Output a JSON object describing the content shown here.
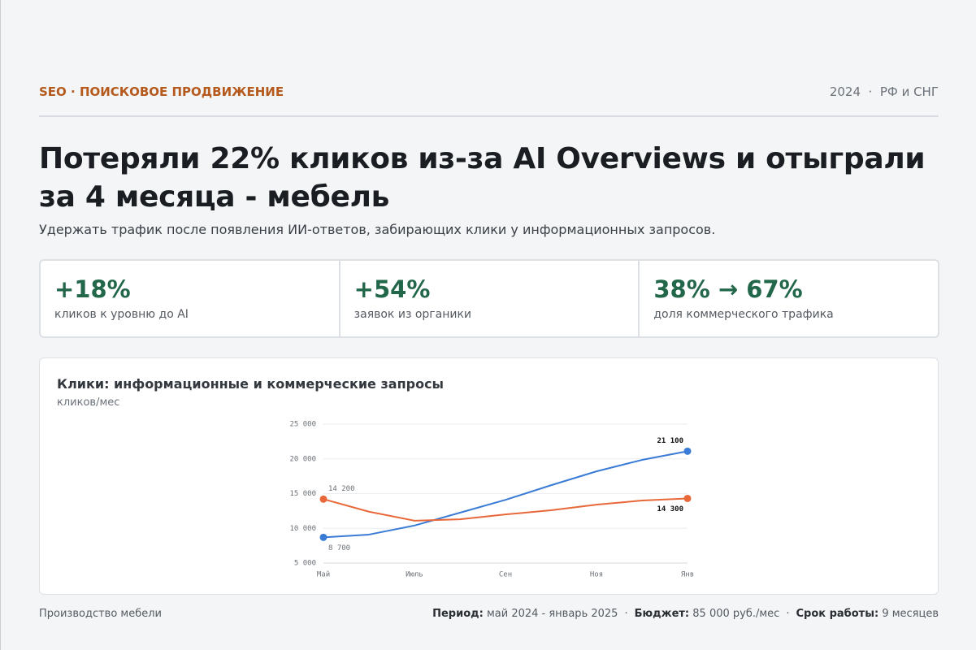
{
  "header": {
    "section": "SEO · ПОИСКОВОЕ ПРОДВИЖЕНИЕ",
    "meta": "2024  ·  РФ и СНГ"
  },
  "title": "Потеряли 22% кликов из-за AI Overviews и отыграли за 4 месяца - мебель",
  "subtitle": "Удержать трафик после появления ИИ-ответов, забирающих клики у информационных запросов.",
  "stats": [
    {
      "value": "+18%",
      "label": "кликов к уровню до AI"
    },
    {
      "value": "+54%",
      "label": "заявок из органики"
    },
    {
      "value": "38% → 67%",
      "label": "доля коммерческого трафика"
    }
  ],
  "chart_data": {
    "type": "line",
    "title": "Клики: информационные и коммерческие запросы",
    "y_label": "кликов/мес",
    "categories": [
      "Май",
      null,
      "Июль",
      null,
      "Сен",
      null,
      "Ноя",
      null,
      "Янв"
    ],
    "series": [
      {
        "color": "#3a7bd5",
        "values": [
          8700,
          9100,
          10400,
          12250,
          14100,
          16200,
          18200,
          19850,
          21100
        ],
        "value_labels": [
          "8 700",
          null,
          null,
          null,
          null,
          null,
          null,
          null,
          "21 100"
        ]
      },
      {
        "color": "#e8683a",
        "values": [
          14200,
          12400,
          11100,
          11300,
          12000,
          12600,
          13400,
          14000,
          14300
        ],
        "value_labels": [
          "14 200",
          null,
          null,
          null,
          null,
          null,
          null,
          null,
          "14 300"
        ]
      }
    ],
    "ylim": [
      5000,
      25000
    ],
    "yticks": [
      {
        "value": 5000,
        "label": "5 000"
      },
      {
        "value": 10000,
        "label": "10 000"
      },
      {
        "value": 15000,
        "label": "15 000"
      },
      {
        "value": 20000,
        "label": "20 000"
      },
      {
        "value": 25000,
        "label": "25 000"
      }
    ],
    "grid": true
  },
  "footer": {
    "industry": "Производство мебели",
    "separator": "·",
    "items": [
      {
        "label": "Период:",
        "value": "май 2024 - январь 2025"
      },
      {
        "label": "Бюджет:",
        "value": "85 000 руб./мес"
      },
      {
        "label": "Срок работы:",
        "value": "9 месяцев"
      }
    ]
  }
}
